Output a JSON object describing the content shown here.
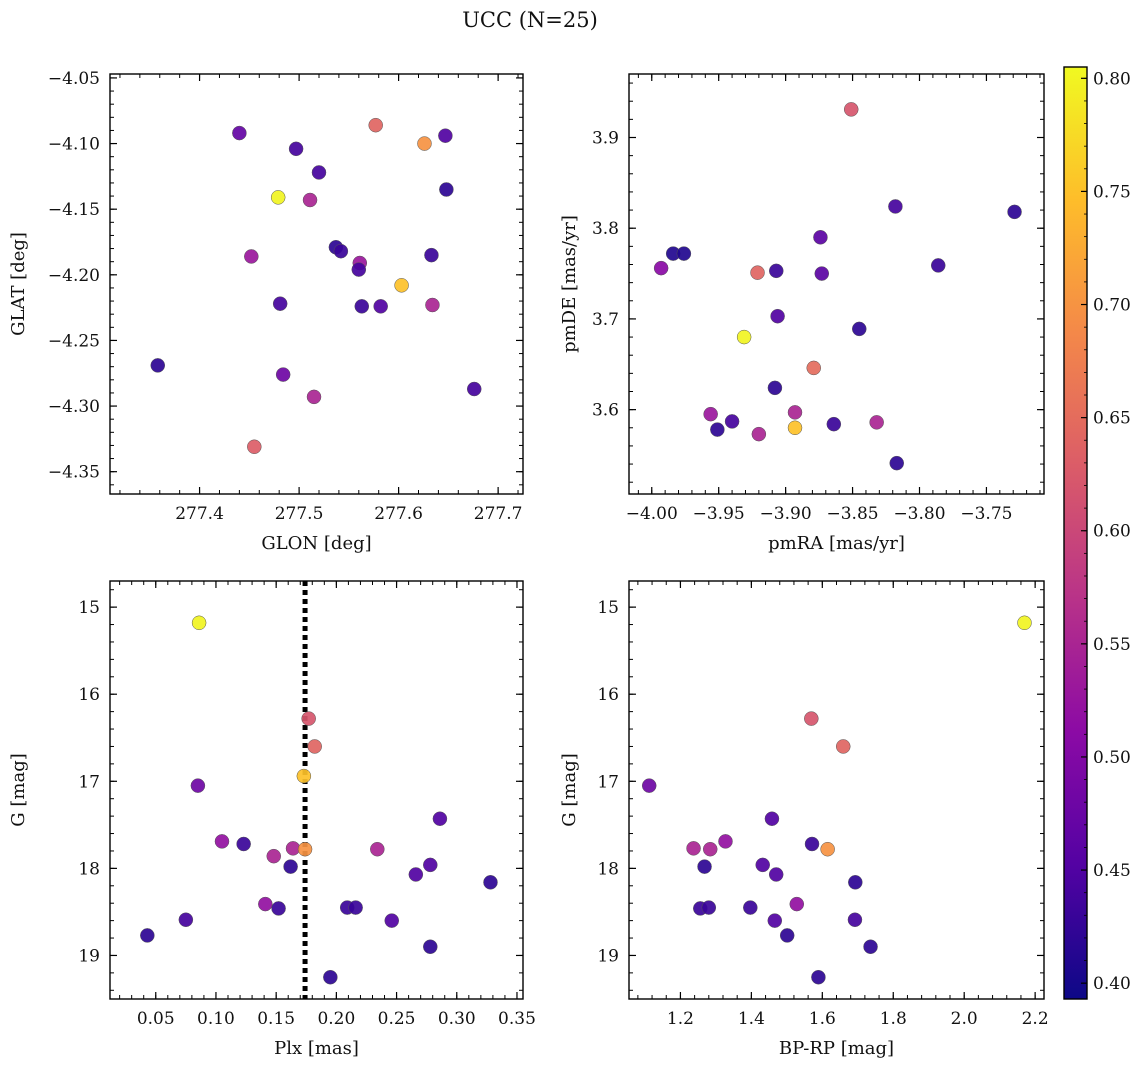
{
  "figure": {
    "title": "UCC (N=25)"
  },
  "colorbar": {
    "range": [
      0.393,
      0.805
    ],
    "ticks": [
      0.4,
      0.45,
      0.5,
      0.55,
      0.6,
      0.65,
      0.7,
      0.75,
      0.8
    ],
    "tick_labels": [
      "0.40",
      "0.45",
      "0.50",
      "0.55",
      "0.60",
      "0.65",
      "0.70",
      "0.75",
      "0.80"
    ],
    "colormap": "plasma",
    "stops": [
      "#0d0887",
      "#5302a3",
      "#8b0aa5",
      "#b83289",
      "#db5c68",
      "#f48849",
      "#febd2a",
      "#f0f921"
    ]
  },
  "chart_data": [
    {
      "type": "scatter",
      "name": "glon-glat",
      "xlabel": "GLON [deg]",
      "ylabel": "GLAT [deg]",
      "xlim": [
        277.31,
        277.725
      ],
      "ylim": [
        -4.367,
        -4.047
      ],
      "y_inverted": false,
      "xticks": [
        277.4,
        277.5,
        277.6,
        277.7
      ],
      "xtick_labels": [
        "277.4",
        "277.5",
        "277.6",
        "277.7"
      ],
      "yticks": [
        -4.35,
        -4.3,
        -4.25,
        -4.2,
        -4.15,
        -4.1,
        -4.05
      ],
      "ytick_labels": [
        "−4.35",
        "−4.30",
        "−4.25",
        "−4.20",
        "−4.15",
        "−4.10",
        "−4.05"
      ],
      "x": [
        277.44,
        277.577,
        277.626,
        277.647,
        277.497,
        277.52,
        277.648,
        277.479,
        277.511,
        277.452,
        277.537,
        277.542,
        277.561,
        277.633,
        277.56,
        277.603,
        277.481,
        277.563,
        277.582,
        277.634,
        277.358,
        277.484,
        277.676,
        277.515,
        277.455
      ],
      "y": [
        -4.092,
        -4.086,
        -4.1,
        -4.094,
        -4.104,
        -4.122,
        -4.135,
        -4.141,
        -4.143,
        -4.186,
        -4.179,
        -4.182,
        -4.191,
        -4.185,
        -4.196,
        -4.208,
        -4.222,
        -4.224,
        -4.224,
        -4.223,
        -4.269,
        -4.276,
        -4.287,
        -4.293,
        -4.331
      ],
      "c": [
        0.47,
        0.64,
        0.7,
        0.45,
        0.44,
        0.44,
        0.42,
        0.8,
        0.55,
        0.53,
        0.42,
        0.43,
        0.53,
        0.43,
        0.44,
        0.75,
        0.44,
        0.43,
        0.45,
        0.55,
        0.42,
        0.48,
        0.44,
        0.55,
        0.63
      ]
    },
    {
      "type": "scatter",
      "name": "pmra-pmde",
      "xlabel": "pmRA [mas/yr]",
      "ylabel": "pmDE [mas/yr]",
      "xlim": [
        -4.017,
        -3.707
      ],
      "ylim": [
        3.507,
        3.97
      ],
      "y_inverted": false,
      "xticks": [
        -4.0,
        -3.95,
        -3.9,
        -3.85,
        -3.8,
        -3.75
      ],
      "xtick_labels": [
        "−4.00",
        "−3.95",
        "−3.90",
        "−3.85",
        "−3.80",
        "−3.75"
      ],
      "yticks": [
        3.6,
        3.7,
        3.8,
        3.9
      ],
      "ytick_labels": [
        "3.6",
        "3.7",
        "3.8",
        "3.9"
      ],
      "x": [
        -3.851,
        -3.818,
        -3.729,
        -3.874,
        -3.984,
        -3.976,
        -3.993,
        -3.921,
        -3.907,
        -3.786,
        -3.873,
        -3.906,
        -3.845,
        -3.931,
        -3.879,
        -3.908,
        -3.956,
        -3.94,
        -3.893,
        -3.832,
        -3.951,
        -3.92,
        -3.893,
        -3.864,
        -3.817
      ],
      "y": [
        3.931,
        3.824,
        3.818,
        3.79,
        3.772,
        3.772,
        3.756,
        3.751,
        3.753,
        3.759,
        3.75,
        3.703,
        3.689,
        3.68,
        3.646,
        3.624,
        3.595,
        3.587,
        3.597,
        3.586,
        3.578,
        3.573,
        3.58,
        3.584,
        3.541
      ],
      "c": [
        0.62,
        0.44,
        0.42,
        0.46,
        0.41,
        0.41,
        0.51,
        0.64,
        0.43,
        0.43,
        0.46,
        0.45,
        0.42,
        0.8,
        0.65,
        0.42,
        0.53,
        0.44,
        0.55,
        0.55,
        0.42,
        0.55,
        0.75,
        0.43,
        0.42
      ]
    },
    {
      "type": "scatter",
      "name": "plx-g",
      "xlabel": "Plx [mas]",
      "ylabel": "G [mag]",
      "xlim": [
        0.012,
        0.355
      ],
      "ylim": [
        19.5,
        14.7
      ],
      "y_inverted": true,
      "xticks": [
        0.05,
        0.1,
        0.15,
        0.2,
        0.25,
        0.3,
        0.35
      ],
      "xtick_labels": [
        "0.05",
        "0.10",
        "0.15",
        "0.20",
        "0.25",
        "0.30",
        "0.35"
      ],
      "yticks": [
        15,
        16,
        17,
        18,
        19
      ],
      "ytick_labels": [
        "15",
        "16",
        "17",
        "18",
        "19"
      ],
      "vline": 0.174,
      "x": [
        0.086,
        0.177,
        0.182,
        0.173,
        0.085,
        0.105,
        0.123,
        0.286,
        0.148,
        0.164,
        0.162,
        0.174,
        0.234,
        0.278,
        0.266,
        0.328,
        0.141,
        0.152,
        0.209,
        0.216,
        0.246,
        0.075,
        0.278,
        0.043,
        0.195
      ],
      "y": [
        15.18,
        16.28,
        16.6,
        16.94,
        17.05,
        17.69,
        17.72,
        17.43,
        17.86,
        17.77,
        17.98,
        17.78,
        17.78,
        17.96,
        18.07,
        18.16,
        18.41,
        18.46,
        18.45,
        18.45,
        18.6,
        18.59,
        18.9,
        18.77,
        19.25
      ],
      "c": [
        0.8,
        0.62,
        0.64,
        0.75,
        0.48,
        0.52,
        0.43,
        0.45,
        0.55,
        0.55,
        0.42,
        0.7,
        0.55,
        0.45,
        0.45,
        0.42,
        0.52,
        0.43,
        0.43,
        0.43,
        0.45,
        0.44,
        0.42,
        0.42,
        0.42
      ]
    },
    {
      "type": "scatter",
      "name": "bprp-g",
      "xlabel": "BP-RP [mag]",
      "ylabel": "G [mag]",
      "xlim": [
        1.055,
        2.225
      ],
      "ylim": [
        19.5,
        14.7
      ],
      "y_inverted": true,
      "xticks": [
        1.2,
        1.4,
        1.6,
        1.8,
        2.0,
        2.2
      ],
      "xtick_labels": [
        "1.2",
        "1.4",
        "1.6",
        "1.8",
        "2.0",
        "2.2"
      ],
      "yticks": [
        15,
        16,
        17,
        18,
        19
      ],
      "ytick_labels": [
        "15",
        "16",
        "17",
        "18",
        "19"
      ],
      "x": [
        2.17,
        1.569,
        1.659,
        1.112,
        1.458,
        1.571,
        1.327,
        1.237,
        1.284,
        1.615,
        1.432,
        1.268,
        1.47,
        1.693,
        1.528,
        1.256,
        1.28,
        1.397,
        1.466,
        1.692,
        1.501,
        1.736,
        1.589
      ],
      "y": [
        15.18,
        16.28,
        16.6,
        17.05,
        17.43,
        17.72,
        17.69,
        17.77,
        17.78,
        17.78,
        17.96,
        17.98,
        18.07,
        18.16,
        18.41,
        18.46,
        18.45,
        18.45,
        18.6,
        18.59,
        18.77,
        18.9,
        19.25
      ],
      "c": [
        0.8,
        0.62,
        0.64,
        0.48,
        0.45,
        0.43,
        0.52,
        0.55,
        0.55,
        0.7,
        0.45,
        0.42,
        0.45,
        0.42,
        0.52,
        0.43,
        0.43,
        0.43,
        0.45,
        0.44,
        0.42,
        0.42,
        0.42
      ]
    }
  ]
}
